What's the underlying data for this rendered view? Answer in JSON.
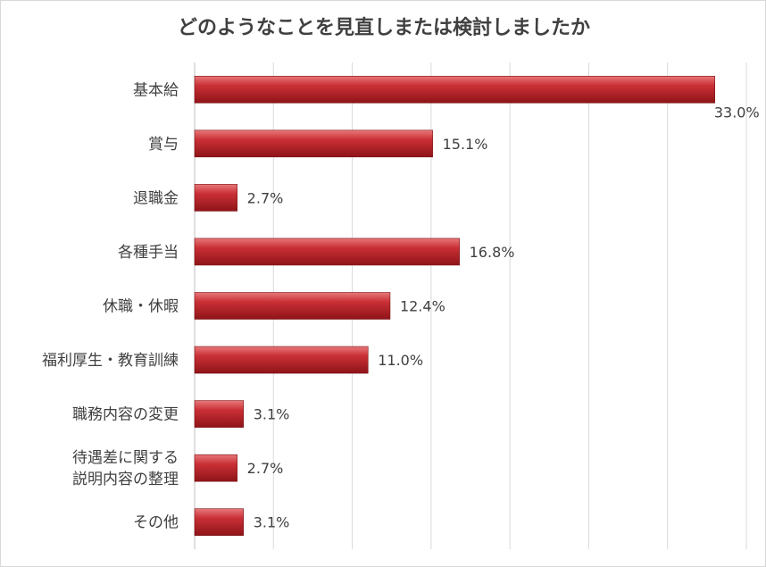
{
  "chart_data": {
    "type": "bar",
    "orientation": "horizontal",
    "title": "どのようなことを見直しまたは検討しましたか",
    "categories": [
      [
        "基本給"
      ],
      [
        "賞与"
      ],
      [
        "退職金"
      ],
      [
        "各種手当"
      ],
      [
        "休職・休暇"
      ],
      [
        "福利厚生・教育訓練"
      ],
      [
        "職務内容の変更"
      ],
      [
        "待遇差に関する",
        "説明内容の整理"
      ],
      [
        "その他"
      ]
    ],
    "values": [
      33.0,
      15.1,
      2.7,
      16.8,
      12.4,
      11.0,
      3.1,
      2.7,
      3.1
    ],
    "value_labels": [
      "33.0%",
      "15.1%",
      "2.7%",
      "16.8%",
      "12.4%",
      "11.0%",
      "3.1%",
      "2.7%",
      "3.1%"
    ],
    "xlim": [
      0,
      35
    ],
    "grid": true,
    "legend": false,
    "bar_color": "#c0262b"
  }
}
